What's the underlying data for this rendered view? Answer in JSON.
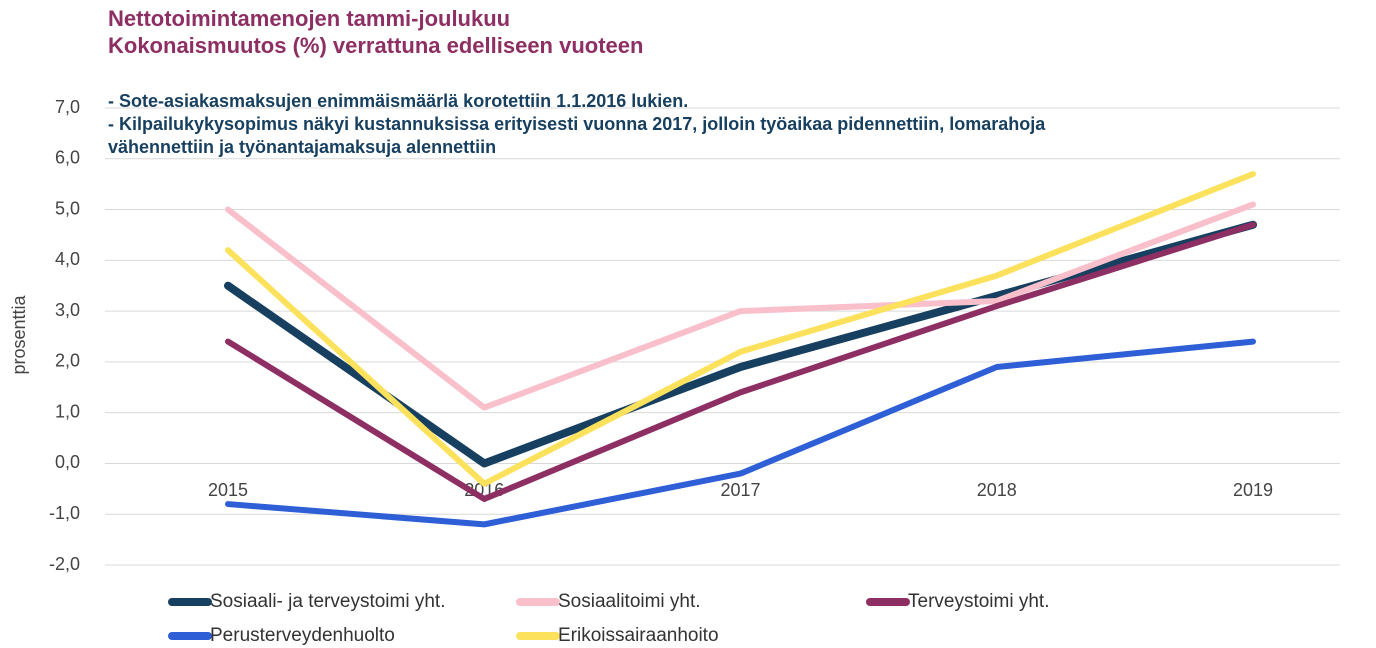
{
  "chart_data": {
    "type": "line",
    "title": [
      "Nettotoimintamenojen tammi-joulukuu",
      "Kokonaismuutos (%) verrattuna edelliseen vuoteen"
    ],
    "annotations": [
      "- Sote-asiakasmaksujen enimmäismäärlä korotettiin 1.1.2016 lukien.",
      "- Kilpailukykysopimus näkyi kustannuksissa erityisesti vuonna 2017, jolloin työaikaa pidennettiin, lomarahoja",
      "vähennettiin ja työnantajamaksuja alennettiin"
    ],
    "y_label": "prosenttia",
    "categories": [
      "2015",
      "2016",
      "2017",
      "2018",
      "2019"
    ],
    "series": [
      {
        "name": "Sosiaali- ja terveystoimi yht.",
        "color": "#173f5f",
        "values": [
          3.5,
          0.0,
          1.9,
          3.3,
          4.7
        ]
      },
      {
        "name": "Sosiaalitoimi yht.",
        "color": "#f9c0cc",
        "values": [
          5.0,
          1.1,
          3.0,
          3.2,
          5.1
        ]
      },
      {
        "name": "Terveystoimi yht.",
        "color": "#8e2f63",
        "values": [
          2.4,
          -0.7,
          1.4,
          3.1,
          4.7
        ]
      },
      {
        "name": "Perusterveydenhuolto",
        "color": "#2f5fd6",
        "values": [
          -0.8,
          -1.2,
          -0.2,
          1.9,
          2.4
        ]
      },
      {
        "name": "Erikoissairaanhoito",
        "color": "#fce25c",
        "values": [
          4.2,
          -0.4,
          2.2,
          3.7,
          5.7
        ]
      }
    ],
    "ylim": [
      -2,
      7
    ],
    "yticks": [
      {
        "value": -2,
        "label": "-2,0"
      },
      {
        "value": -1,
        "label": "-1,0"
      },
      {
        "value": 0,
        "label": "0,0"
      },
      {
        "value": 1,
        "label": "1,0"
      },
      {
        "value": 2,
        "label": "2,0"
      },
      {
        "value": 3,
        "label": "3,0"
      },
      {
        "value": 4,
        "label": "4,0"
      },
      {
        "value": 5,
        "label": "5,0"
      },
      {
        "value": 6,
        "label": "6,0"
      },
      {
        "value": 7,
        "label": "7,0"
      }
    ],
    "grid": true
  }
}
